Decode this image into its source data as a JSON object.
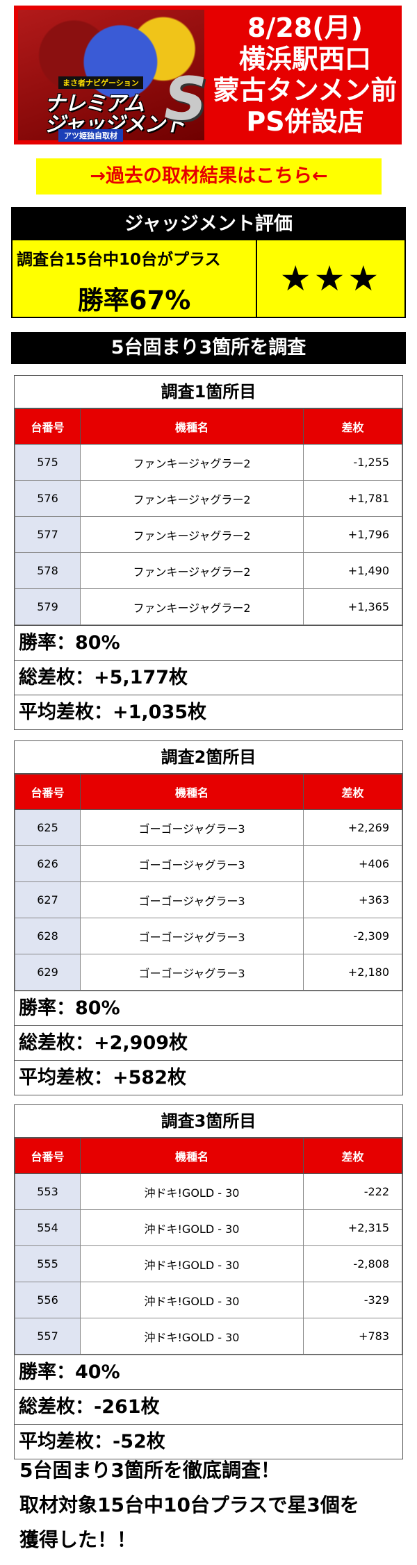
{
  "header": {
    "logo": {
      "tagline": "まさ者ナビゲーション",
      "title_line1": "ナレミアム",
      "title_line2": "ジャッジメント",
      "letter": "S",
      "subtitle": "アツ姫独自取材"
    },
    "date": "8/28(月)",
    "location_line1": "横浜駅西口",
    "location_line2": "蒙古タンメン前",
    "location_line3": "PS併設店"
  },
  "past_link": "→過去の取材結果はこちら←",
  "evaluation": {
    "heading": "ジャッジメント評価",
    "summary": "調査台15台中10台がプラス",
    "win_rate": "勝率67%",
    "stars": "★★★"
  },
  "section_bar": "5台固まり3箇所を調査",
  "columns": {
    "machine_no": "台番号",
    "machine_name": "機種名",
    "diff": "差枚"
  },
  "surveys": [
    {
      "title": "調査1箇所目",
      "rows": [
        {
          "no": "575",
          "name": "ファンキージャグラー2",
          "diff": "-1,255"
        },
        {
          "no": "576",
          "name": "ファンキージャグラー2",
          "diff": "+1,781"
        },
        {
          "no": "577",
          "name": "ファンキージャグラー2",
          "diff": "+1,796"
        },
        {
          "no": "578",
          "name": "ファンキージャグラー2",
          "diff": "+1,490"
        },
        {
          "no": "579",
          "name": "ファンキージャグラー2",
          "diff": "+1,365"
        }
      ],
      "win_rate": "勝率：80%",
      "total": "総差枚：+5,177枚",
      "average": "平均差枚：+1,035枚"
    },
    {
      "title": "調査2箇所目",
      "rows": [
        {
          "no": "625",
          "name": "ゴーゴージャグラー3",
          "diff": "+2,269"
        },
        {
          "no": "626",
          "name": "ゴーゴージャグラー3",
          "diff": "+406"
        },
        {
          "no": "627",
          "name": "ゴーゴージャグラー3",
          "diff": "+363"
        },
        {
          "no": "628",
          "name": "ゴーゴージャグラー3",
          "diff": "-2,309"
        },
        {
          "no": "629",
          "name": "ゴーゴージャグラー3",
          "diff": "+2,180"
        }
      ],
      "win_rate": "勝率：80%",
      "total": "総差枚：+2,909枚",
      "average": "平均差枚：+582枚"
    },
    {
      "title": "調査3箇所目",
      "rows": [
        {
          "no": "553",
          "name": "沖ドキ!GOLD - 30",
          "diff": "-222"
        },
        {
          "no": "554",
          "name": "沖ドキ!GOLD - 30",
          "diff": "+2,315"
        },
        {
          "no": "555",
          "name": "沖ドキ!GOLD - 30",
          "diff": "-2,808"
        },
        {
          "no": "556",
          "name": "沖ドキ!GOLD - 30",
          "diff": "-329"
        },
        {
          "no": "557",
          "name": "沖ドキ!GOLD - 30",
          "diff": "+783"
        }
      ],
      "win_rate": "勝率：40%",
      "total": "総差枚：-261枚",
      "average": "平均差枚：-52枚"
    }
  ],
  "footer": {
    "line1": "5台固まり3箇所を徹底調査！",
    "line2": "取材対象15台中10台プラスで星3個を",
    "line3": "獲得した！！"
  },
  "colors": {
    "brand_red": "#e60000",
    "highlight_yellow": "#ffff00",
    "number_cell": "#dfe4f2"
  }
}
